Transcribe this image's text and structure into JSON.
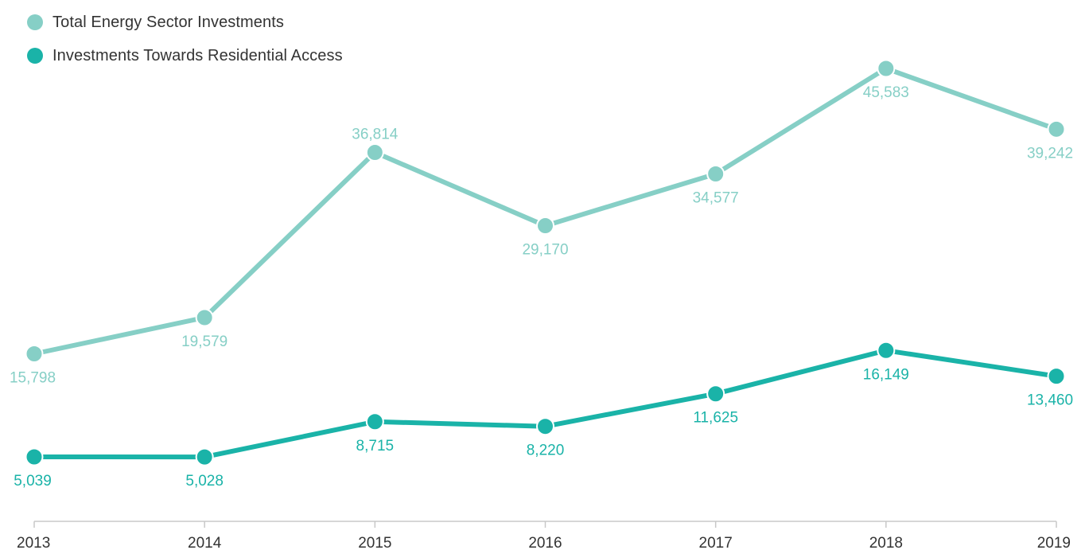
{
  "chart_data": {
    "type": "line",
    "title": "",
    "xlabel": "",
    "ylabel": "",
    "x": [
      "2013",
      "2014",
      "2015",
      "2016",
      "2017",
      "2018",
      "2019"
    ],
    "ylim": [
      0,
      50000
    ],
    "grid": false,
    "legend_position": "top-left",
    "series": [
      {
        "name": "Total Energy Sector Investments",
        "color": "#86cfc6",
        "values": [
          15798,
          19579,
          36814,
          29170,
          34577,
          45583,
          39242
        ],
        "labels": [
          "15,798",
          "19,579",
          "36,814",
          "29,170",
          "34,577",
          "45,583",
          "39,242"
        ],
        "label_positions": [
          "below",
          "below",
          "above",
          "below",
          "below",
          "below",
          "below"
        ]
      },
      {
        "name": "Investments Towards Residential Access",
        "color": "#1ab3a8",
        "values": [
          5039,
          5028,
          8715,
          8220,
          11625,
          16149,
          13460
        ],
        "labels": [
          "5,039",
          "5,028",
          "8,715",
          "8,220",
          "11,625",
          "16,149",
          "13,460"
        ],
        "label_positions": [
          "below",
          "below",
          "below",
          "below",
          "below",
          "below",
          "below"
        ]
      }
    ]
  }
}
